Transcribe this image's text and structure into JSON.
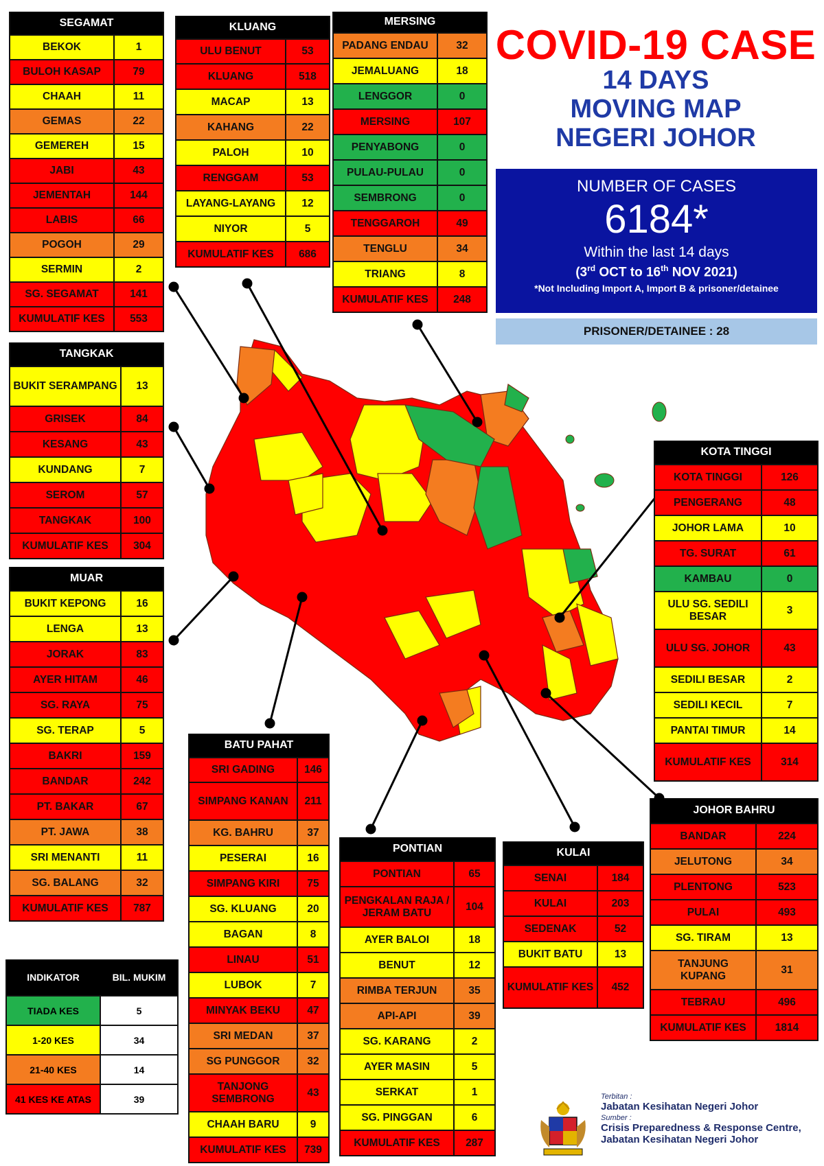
{
  "title": {
    "main": "COVID-19 CASE",
    "line1": "14 DAYS",
    "line2": "MOVING MAP",
    "line3": "NEGERI JOHOR"
  },
  "cases": {
    "label": "NUMBER OF CASES",
    "number": "6184*",
    "period": "Within the last 14 days",
    "range_open": "(3",
    "range_sup1": "rd",
    "range_mid": " OCT to 16",
    "range_sup2": "th",
    "range_close": " NOV 2021)",
    "note": "*Not Including Import A, Import B & prisoner/detainee"
  },
  "prisoner": "PRISONER/DETAINEE : 28",
  "colors": {
    "red": "#ff0000",
    "orange": "#f47c20",
    "yellow": "#ffff00",
    "green": "#22b14c",
    "title_red": "#ff0000",
    "title_blue": "#1f3aa6",
    "cases_box": "#0a14a0",
    "prisoner_box": "#a7c7e7"
  },
  "districts": [
    {
      "id": "segamat",
      "name": "SEGAMAT",
      "rows": [
        {
          "name": "BEKOK",
          "value": "1",
          "color": "yellow"
        },
        {
          "name": "BULOH KASAP",
          "value": "79",
          "color": "red"
        },
        {
          "name": "CHAAH",
          "value": "11",
          "color": "yellow"
        },
        {
          "name": "GEMAS",
          "value": "22",
          "color": "orange"
        },
        {
          "name": "GEMEREH",
          "value": "15",
          "color": "yellow"
        },
        {
          "name": "JABI",
          "value": "43",
          "color": "red"
        },
        {
          "name": "JEMENTAH",
          "value": "144",
          "color": "red"
        },
        {
          "name": "LABIS",
          "value": "66",
          "color": "red"
        },
        {
          "name": "POGOH",
          "value": "29",
          "color": "orange"
        },
        {
          "name": "SERMIN",
          "value": "2",
          "color": "yellow"
        },
        {
          "name": "SG. SEGAMAT",
          "value": "141",
          "color": "red"
        },
        {
          "name": "KUMULATIF KES",
          "value": "553",
          "color": "red"
        }
      ]
    },
    {
      "id": "kluang",
      "name": "KLUANG",
      "rows": [
        {
          "name": "ULU BENUT",
          "value": "53",
          "color": "red"
        },
        {
          "name": "KLUANG",
          "value": "518",
          "color": "red"
        },
        {
          "name": "MACAP",
          "value": "13",
          "color": "yellow"
        },
        {
          "name": "KAHANG",
          "value": "22",
          "color": "orange"
        },
        {
          "name": "PALOH",
          "value": "10",
          "color": "yellow"
        },
        {
          "name": "RENGGAM",
          "value": "53",
          "color": "red"
        },
        {
          "name": "LAYANG-LAYANG",
          "value": "12",
          "color": "yellow"
        },
        {
          "name": "NIYOR",
          "value": "5",
          "color": "yellow"
        },
        {
          "name": "KUMULATIF KES",
          "value": "686",
          "color": "red"
        }
      ]
    },
    {
      "id": "mersing",
      "name": "MERSING",
      "rows": [
        {
          "name": "PADANG ENDAU",
          "value": "32",
          "color": "orange"
        },
        {
          "name": "JEMALUANG",
          "value": "18",
          "color": "yellow"
        },
        {
          "name": "LENGGOR",
          "value": "0",
          "color": "green"
        },
        {
          "name": "MERSING",
          "value": "107",
          "color": "red"
        },
        {
          "name": "PENYABONG",
          "value": "0",
          "color": "green"
        },
        {
          "name": "PULAU-PULAU",
          "value": "0",
          "color": "green"
        },
        {
          "name": "SEMBRONG",
          "value": "0",
          "color": "green"
        },
        {
          "name": "TENGGAROH",
          "value": "49",
          "color": "red"
        },
        {
          "name": "TENGLU",
          "value": "34",
          "color": "orange"
        },
        {
          "name": "TRIANG",
          "value": "8",
          "color": "yellow"
        },
        {
          "name": "KUMULATIF KES",
          "value": "248",
          "color": "red"
        }
      ]
    },
    {
      "id": "tangkak",
      "name": "TANGKAK",
      "rows": [
        {
          "name": "BUKIT SERAMPANG",
          "value": "13",
          "color": "yellow"
        },
        {
          "name": "GRISEK",
          "value": "84",
          "color": "red"
        },
        {
          "name": "KESANG",
          "value": "43",
          "color": "red"
        },
        {
          "name": "KUNDANG",
          "value": "7",
          "color": "yellow"
        },
        {
          "name": "SEROM",
          "value": "57",
          "color": "red"
        },
        {
          "name": "TANGKAK",
          "value": "100",
          "color": "red"
        },
        {
          "name": "KUMULATIF KES",
          "value": "304",
          "color": "red"
        }
      ]
    },
    {
      "id": "muar",
      "name": "MUAR",
      "rows": [
        {
          "name": "BUKIT KEPONG",
          "value": "16",
          "color": "yellow"
        },
        {
          "name": "LENGA",
          "value": "13",
          "color": "yellow"
        },
        {
          "name": "JORAK",
          "value": "83",
          "color": "red"
        },
        {
          "name": "AYER HITAM",
          "value": "46",
          "color": "red"
        },
        {
          "name": "SG. RAYA",
          "value": "75",
          "color": "red"
        },
        {
          "name": "SG. TERAP",
          "value": "5",
          "color": "yellow"
        },
        {
          "name": "BAKRI",
          "value": "159",
          "color": "red"
        },
        {
          "name": "BANDAR",
          "value": "242",
          "color": "red"
        },
        {
          "name": "PT. BAKAR",
          "value": "67",
          "color": "red"
        },
        {
          "name": "PT. JAWA",
          "value": "38",
          "color": "orange"
        },
        {
          "name": "SRI MENANTI",
          "value": "11",
          "color": "yellow"
        },
        {
          "name": "SG. BALANG",
          "value": "32",
          "color": "orange"
        },
        {
          "name": "KUMULATIF KES",
          "value": "787",
          "color": "red"
        }
      ]
    },
    {
      "id": "batupahat",
      "name": "BATU PAHAT",
      "rows": [
        {
          "name": "SRI GADING",
          "value": "146",
          "color": "red"
        },
        {
          "name": "SIMPANG KANAN",
          "value": "211",
          "color": "red"
        },
        {
          "name": "KG. BAHRU",
          "value": "37",
          "color": "orange"
        },
        {
          "name": "PESERAI",
          "value": "16",
          "color": "yellow"
        },
        {
          "name": "SIMPANG KIRI",
          "value": "75",
          "color": "red"
        },
        {
          "name": "SG. KLUANG",
          "value": "20",
          "color": "yellow"
        },
        {
          "name": "BAGAN",
          "value": "8",
          "color": "yellow"
        },
        {
          "name": "LINAU",
          "value": "51",
          "color": "red"
        },
        {
          "name": "LUBOK",
          "value": "7",
          "color": "yellow"
        },
        {
          "name": "MINYAK BEKU",
          "value": "47",
          "color": "red"
        },
        {
          "name": "SRI MEDAN",
          "value": "37",
          "color": "orange"
        },
        {
          "name": "SG PUNGGOR",
          "value": "32",
          "color": "orange"
        },
        {
          "name": "TANJONG SEMBRONG",
          "value": "43",
          "color": "red"
        },
        {
          "name": "CHAAH BARU",
          "value": "9",
          "color": "yellow"
        },
        {
          "name": "KUMULATIF KES",
          "value": "739",
          "color": "red"
        }
      ]
    },
    {
      "id": "pontian",
      "name": "PONTIAN",
      "rows": [
        {
          "name": "PONTIAN",
          "value": "65",
          "color": "red"
        },
        {
          "name": "PENGKALAN RAJA / JERAM BATU",
          "value": "104",
          "color": "red"
        },
        {
          "name": "AYER BALOI",
          "value": "18",
          "color": "yellow"
        },
        {
          "name": "BENUT",
          "value": "12",
          "color": "yellow"
        },
        {
          "name": "RIMBA TERJUN",
          "value": "35",
          "color": "orange"
        },
        {
          "name": "API-API",
          "value": "39",
          "color": "orange"
        },
        {
          "name": "SG. KARANG",
          "value": "2",
          "color": "yellow"
        },
        {
          "name": "AYER MASIN",
          "value": "5",
          "color": "yellow"
        },
        {
          "name": "SERKAT",
          "value": "1",
          "color": "yellow"
        },
        {
          "name": "SG. PINGGAN",
          "value": "6",
          "color": "yellow"
        },
        {
          "name": "KUMULATIF KES",
          "value": "287",
          "color": "red"
        }
      ]
    },
    {
      "id": "kulai",
      "name": "KULAI",
      "rows": [
        {
          "name": "SENAI",
          "value": "184",
          "color": "red"
        },
        {
          "name": "KULAI",
          "value": "203",
          "color": "red"
        },
        {
          "name": "SEDENAK",
          "value": "52",
          "color": "red"
        },
        {
          "name": "BUKIT BATU",
          "value": "13",
          "color": "yellow"
        },
        {
          "name": "KUMULATIF KES",
          "value": "452",
          "color": "red"
        }
      ]
    },
    {
      "id": "kotatinggi",
      "name": "KOTA TINGGI",
      "rows": [
        {
          "name": "KOTA TINGGI",
          "value": "126",
          "color": "red"
        },
        {
          "name": "PENGERANG",
          "value": "48",
          "color": "red"
        },
        {
          "name": "JOHOR LAMA",
          "value": "10",
          "color": "yellow"
        },
        {
          "name": "TG. SURAT",
          "value": "61",
          "color": "red"
        },
        {
          "name": "KAMBAU",
          "value": "0",
          "color": "green"
        },
        {
          "name": "ULU SG. SEDILI BESAR",
          "value": "3",
          "color": "yellow"
        },
        {
          "name": "ULU  SG. JOHOR",
          "value": "43",
          "color": "red"
        },
        {
          "name": "SEDILI BESAR",
          "value": "2",
          "color": "yellow"
        },
        {
          "name": "SEDILI KECIL",
          "value": "7",
          "color": "yellow"
        },
        {
          "name": "PANTAI TIMUR",
          "value": "14",
          "color": "yellow"
        },
        {
          "name": "KUMULATIF KES",
          "value": "314",
          "color": "red"
        }
      ]
    },
    {
      "id": "johorbahru",
      "name": "JOHOR BAHRU",
      "rows": [
        {
          "name": "BANDAR",
          "value": "224",
          "color": "red"
        },
        {
          "name": "JELUTONG",
          "value": "34",
          "color": "orange"
        },
        {
          "name": "PLENTONG",
          "value": "523",
          "color": "red"
        },
        {
          "name": "PULAI",
          "value": "493",
          "color": "red"
        },
        {
          "name": "SG. TIRAM",
          "value": "13",
          "color": "yellow"
        },
        {
          "name": "TANJUNG KUPANG",
          "value": "31",
          "color": "orange"
        },
        {
          "name": "TEBRAU",
          "value": "496",
          "color": "red"
        },
        {
          "name": "KUMULATIF KES",
          "value": "1814",
          "color": "red"
        }
      ]
    }
  ],
  "legend": {
    "header_left": "INDIKATOR",
    "header_right": "BIL. MUKIM",
    "rows": [
      {
        "label": "TIADA KES",
        "count": "5",
        "color": "green"
      },
      {
        "label": "1-20 KES",
        "count": "34",
        "color": "yellow"
      },
      {
        "label": "21-40 KES",
        "count": "14",
        "color": "orange"
      },
      {
        "label": "41 KES KE ATAS",
        "count": "39",
        "color": "red"
      }
    ]
  },
  "publisher": {
    "label1": "Terbitan :",
    "org1": "Jabatan Kesihatan Negeri Johor",
    "label2": "Sumber :",
    "org2a": "Crisis Preparedness & Response Centre,",
    "org2b": "Jabatan Kesihatan Negeri Johor"
  }
}
